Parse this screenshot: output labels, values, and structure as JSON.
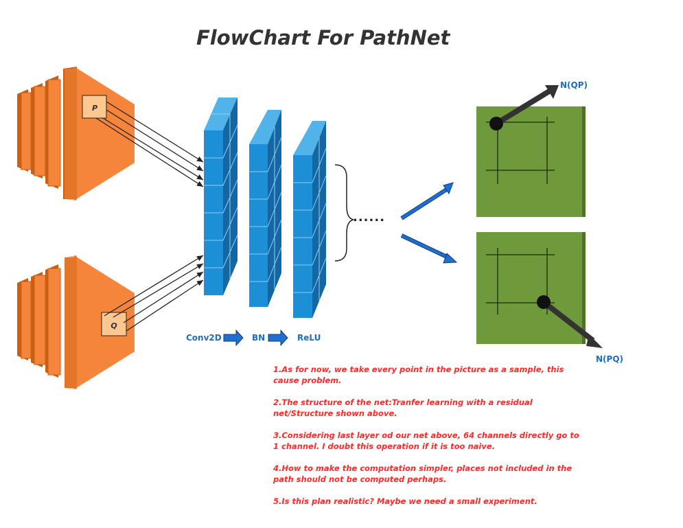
{
  "title": "FlowChart For PathNet",
  "inputs": {
    "top_patch_label": "P",
    "bottom_patch_label": "Q"
  },
  "layers": [
    "Conv2D",
    "BN",
    "ReLU"
  ],
  "ellipsis": "......",
  "outputs": {
    "top_label": "N(QP)",
    "bottom_label": "N(PQ)"
  },
  "notes": [
    "1.As for now, we take every point in the picture as a sample, this\n  cause problem.",
    "2.The structure of the net:Tranfer learning with a residual\n  net/Structure shown above.",
    "3.Considering last layer od our net above, 64 channels directly go to\n  1 channel. I doubt this operation if it is too naive.",
    "4.How to make the computation simpler, places not included in the\n  path should not be computed perhaps.",
    "5.Is this plan realistic? Maybe we need a small experiment."
  ],
  "colors": {
    "feature_map": "#f5853a",
    "feature_map_side": "#c85f12",
    "patch": "#fcc88f",
    "layer_block": "#1c8fd6",
    "layer_side": "#1572b0",
    "layer_top": "#52b3ea",
    "output_map": "#6f9a3b",
    "arrow_blue": "#1f6fd1",
    "note_text": "#ff2a2a",
    "label_blue": "#1a6fc4"
  }
}
